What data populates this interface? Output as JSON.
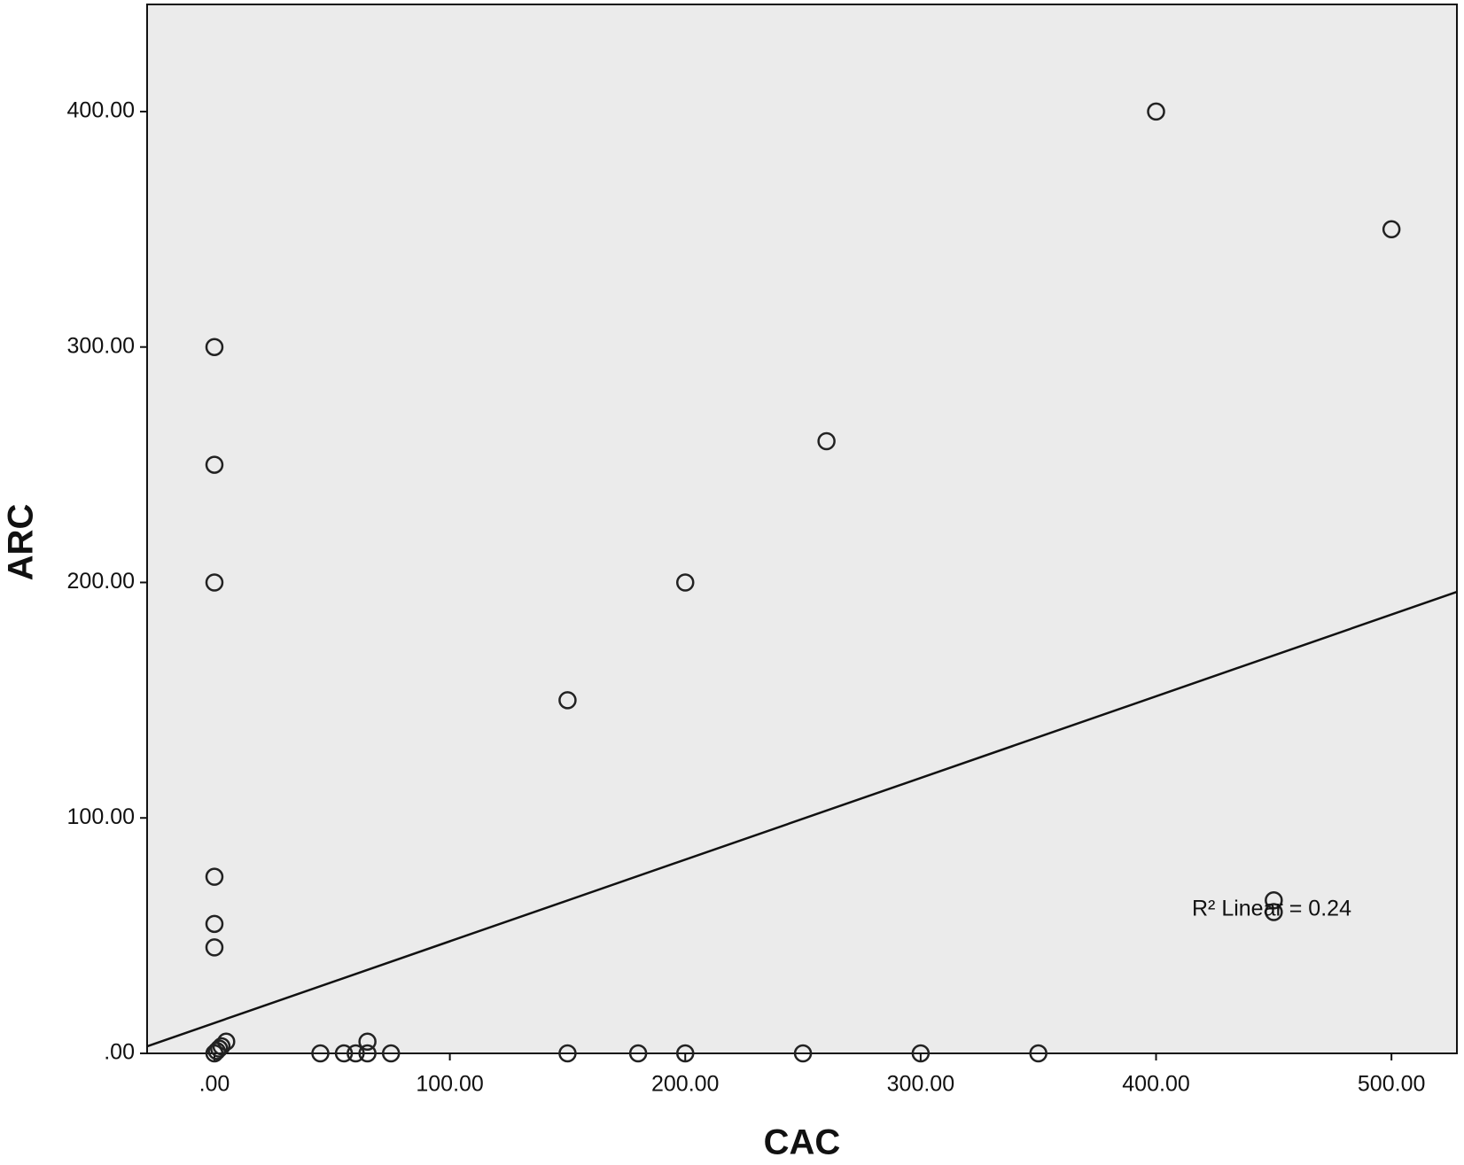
{
  "chart_data": {
    "type": "scatter",
    "x_label": "CAC",
    "y_label": "ARC",
    "annotation": "R² Linear = 0.24",
    "x": [
      0,
      0,
      0,
      0,
      0,
      0,
      0,
      1,
      2,
      3,
      5,
      400,
      500,
      260,
      200,
      150,
      450,
      450,
      45,
      55,
      60,
      65,
      65,
      75,
      150,
      180,
      200,
      250,
      300,
      350
    ],
    "values": [
      300,
      250,
      200,
      75,
      55,
      45,
      0,
      1,
      2,
      3,
      5,
      400,
      350,
      260,
      200,
      150,
      65,
      60,
      0,
      0,
      0,
      5,
      0,
      0,
      0,
      0,
      0,
      0,
      0,
      0
    ],
    "fit_line": {
      "x": [
        -28.6,
        527.8
      ],
      "y": [
        3,
        196
      ]
    },
    "xlim": [
      -28.6,
      527.8
    ],
    "ylim": [
      0,
      445.5
    ],
    "xticks": [
      {
        "value": 0,
        "label": ".00"
      },
      {
        "value": 100,
        "label": "100.00"
      },
      {
        "value": 200,
        "label": "200.00"
      },
      {
        "value": 300,
        "label": "300.00"
      },
      {
        "value": 400,
        "label": "400.00"
      },
      {
        "value": 500,
        "label": "500.00"
      }
    ],
    "yticks": [
      {
        "value": 0,
        "label": ".00"
      },
      {
        "value": 100,
        "label": "100.00"
      },
      {
        "value": 200,
        "label": "200.00"
      },
      {
        "value": 300,
        "label": "300.00"
      },
      {
        "value": 400,
        "label": "400.00"
      }
    ],
    "background": "#ebebeb",
    "color": "#222222"
  }
}
